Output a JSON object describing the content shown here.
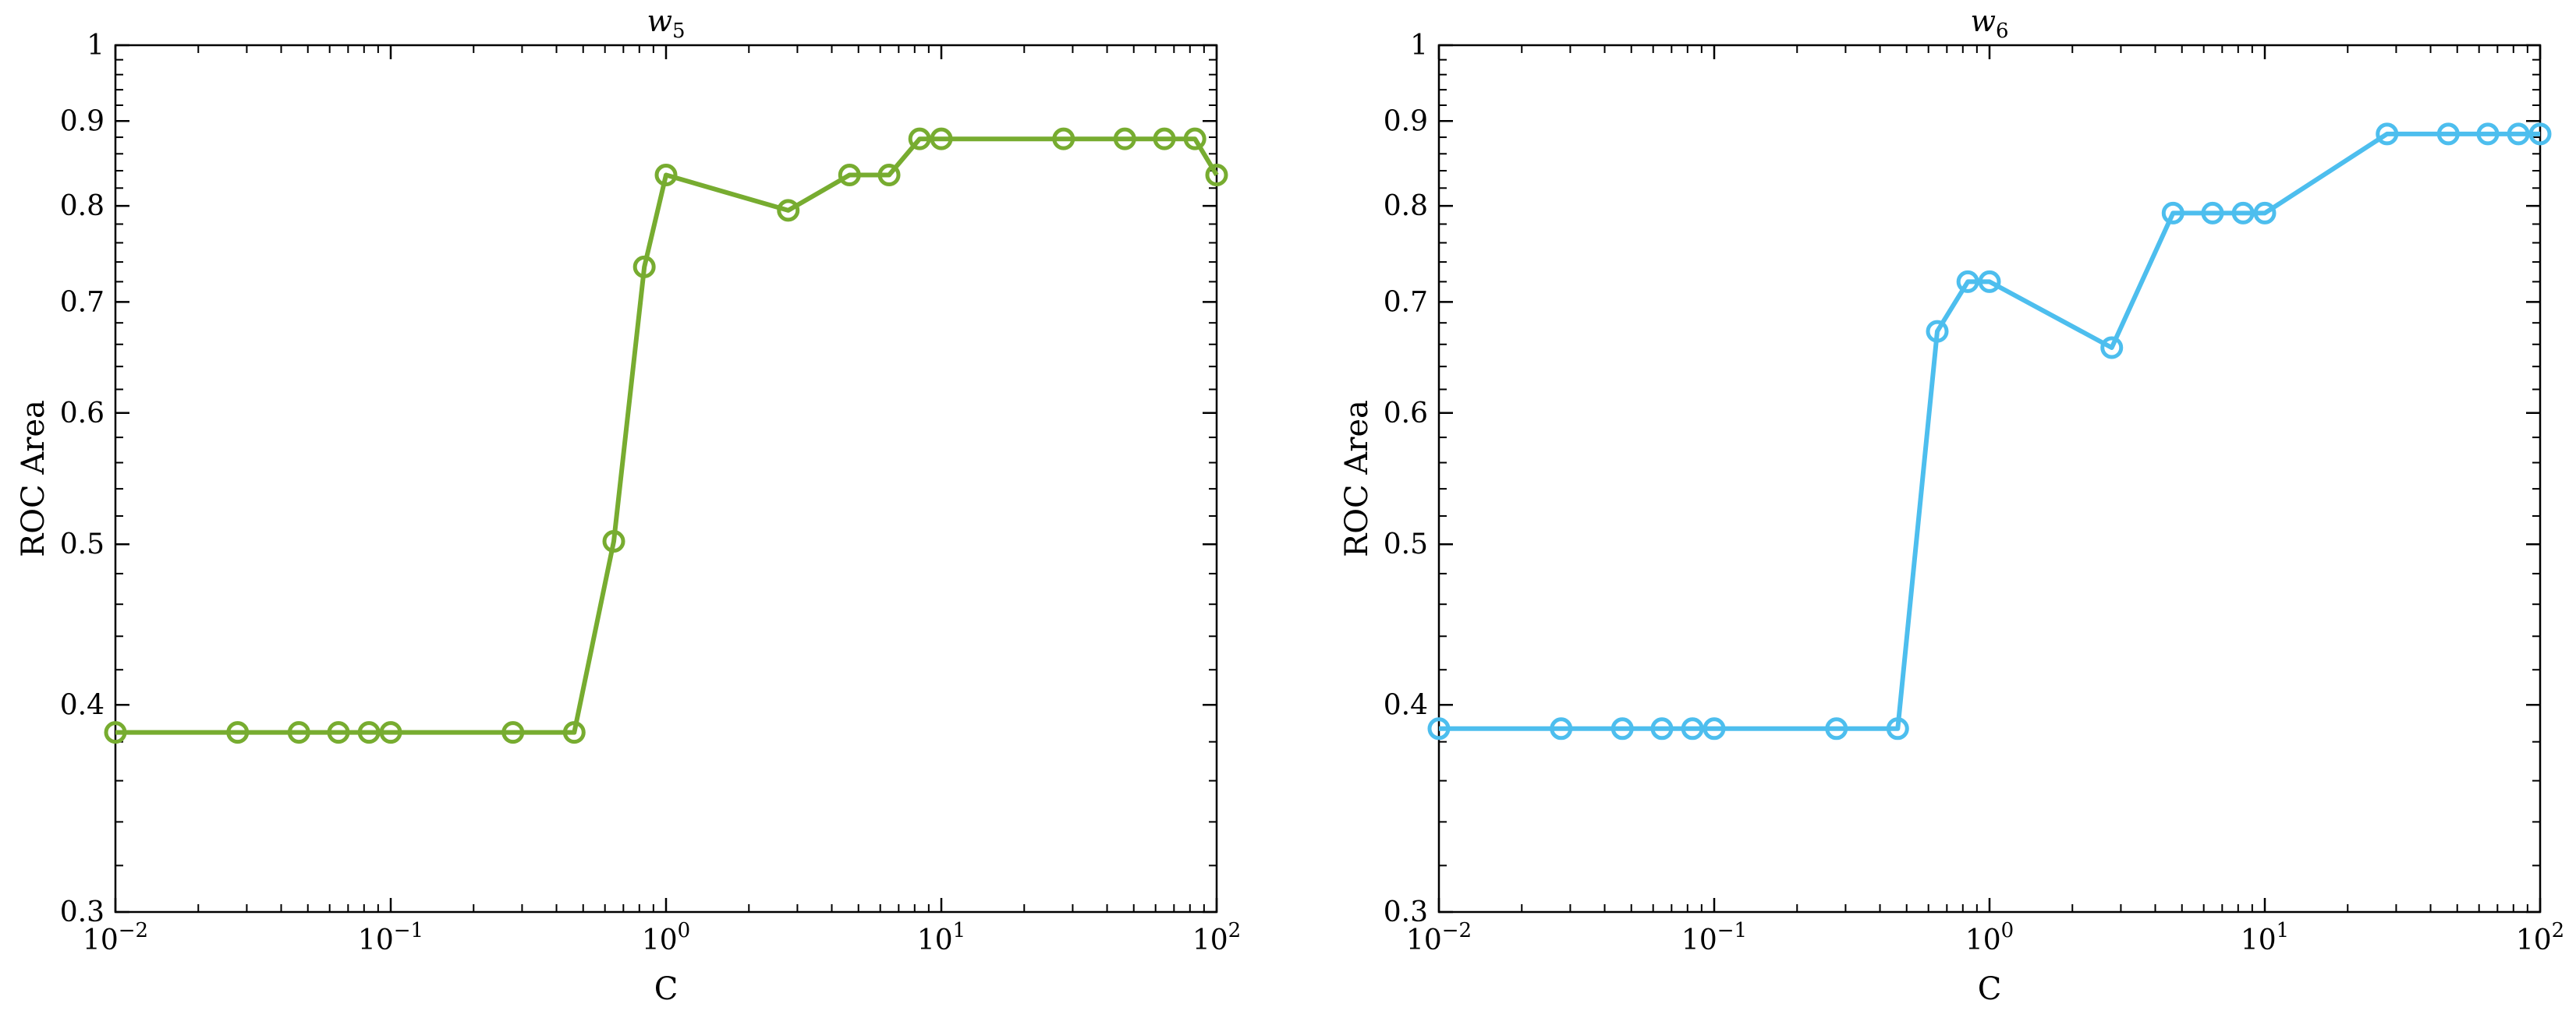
{
  "chart_data": [
    {
      "type": "line",
      "title": "w",
      "title_subscript": "5",
      "xlabel": "C",
      "ylabel": "ROC Area",
      "xscale": "log",
      "yscale": "log",
      "xlim": [
        0.01,
        100
      ],
      "ylim": [
        0.3,
        1
      ],
      "xticks": [
        {
          "value": 0.01,
          "base": "10",
          "exp": "−2"
        },
        {
          "value": 0.1,
          "base": "10",
          "exp": "−1"
        },
        {
          "value": 1,
          "base": "10",
          "exp": "0"
        },
        {
          "value": 10,
          "base": "10",
          "exp": "1"
        },
        {
          "value": 100,
          "base": "10",
          "exp": "2"
        }
      ],
      "yticks": [
        {
          "value": 0.3,
          "label": "0.3"
        },
        {
          "value": 0.4,
          "label": "0.4"
        },
        {
          "value": 0.5,
          "label": "0.5"
        },
        {
          "value": 0.6,
          "label": "0.6"
        },
        {
          "value": 0.7,
          "label": "0.7"
        },
        {
          "value": 0.8,
          "label": "0.8"
        },
        {
          "value": 0.9,
          "label": "0.9"
        },
        {
          "value": 1,
          "label": "1"
        }
      ],
      "grid": false,
      "series": [
        {
          "color": "#77AC30",
          "marker": "open-circle",
          "x": [
            0.01,
            0.0278,
            0.0464,
            0.0646,
            0.0834,
            0.1,
            0.278,
            0.464,
            0.646,
            0.834,
            1.0,
            2.78,
            4.64,
            6.46,
            8.34,
            10.0,
            27.8,
            46.4,
            64.6,
            83.4,
            100
          ],
          "y": [
            0.385,
            0.385,
            0.385,
            0.385,
            0.385,
            0.385,
            0.385,
            0.385,
            0.502,
            0.735,
            0.835,
            0.795,
            0.835,
            0.835,
            0.878,
            0.878,
            0.878,
            0.878,
            0.878,
            0.878,
            0.835
          ]
        }
      ]
    },
    {
      "type": "line",
      "title": "w",
      "title_subscript": "6",
      "xlabel": "C",
      "ylabel": "ROC Area",
      "xscale": "log",
      "yscale": "log",
      "xlim": [
        0.01,
        100
      ],
      "ylim": [
        0.3,
        1
      ],
      "xticks": [
        {
          "value": 0.01,
          "base": "10",
          "exp": "−2"
        },
        {
          "value": 0.1,
          "base": "10",
          "exp": "−1"
        },
        {
          "value": 1,
          "base": "10",
          "exp": "0"
        },
        {
          "value": 10,
          "base": "10",
          "exp": "1"
        },
        {
          "value": 100,
          "base": "10",
          "exp": "2"
        }
      ],
      "yticks": [
        {
          "value": 0.3,
          "label": "0.3"
        },
        {
          "value": 0.4,
          "label": "0.4"
        },
        {
          "value": 0.5,
          "label": "0.5"
        },
        {
          "value": 0.6,
          "label": "0.6"
        },
        {
          "value": 0.7,
          "label": "0.7"
        },
        {
          "value": 0.8,
          "label": "0.8"
        },
        {
          "value": 0.9,
          "label": "0.9"
        },
        {
          "value": 1,
          "label": "1"
        }
      ],
      "grid": false,
      "series": [
        {
          "color": "#4DBEEE",
          "marker": "open-circle",
          "x": [
            0.01,
            0.0278,
            0.0464,
            0.0646,
            0.0834,
            0.1,
            0.278,
            0.464,
            0.646,
            0.834,
            1.0,
            2.78,
            4.64,
            6.46,
            8.34,
            10.0,
            27.8,
            46.4,
            64.6,
            83.4,
            100
          ],
          "y": [
            0.387,
            0.387,
            0.387,
            0.387,
            0.387,
            0.387,
            0.387,
            0.387,
            0.672,
            0.72,
            0.72,
            0.657,
            0.792,
            0.792,
            0.792,
            0.792,
            0.884,
            0.884,
            0.884,
            0.884,
            0.884
          ]
        }
      ]
    }
  ]
}
